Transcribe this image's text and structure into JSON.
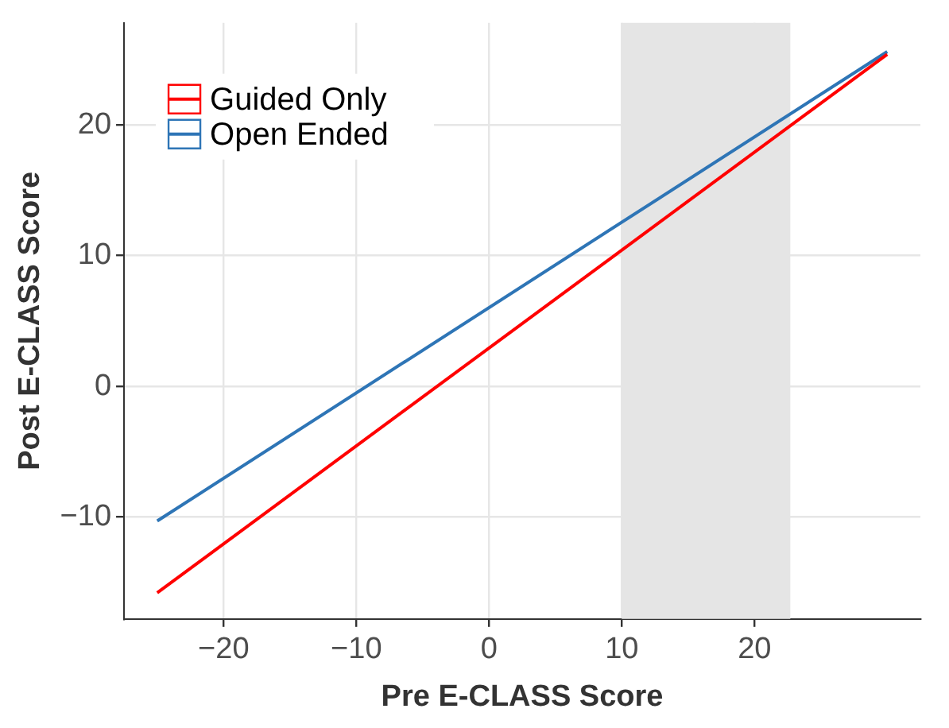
{
  "chart_data": {
    "type": "line",
    "xlabel": "Pre E-CLASS Score",
    "ylabel": "Post E-CLASS Score",
    "x": [
      -25,
      30
    ],
    "series": [
      {
        "name": "Guided Only",
        "color": "#ff0000",
        "values": [
          -15.8,
          25.4
        ]
      },
      {
        "name": "Open Ended",
        "color": "#2e75b6",
        "values": [
          -10.3,
          25.6
        ]
      }
    ],
    "xlim": [
      -27.5,
      32.5
    ],
    "ylim": [
      -17.8,
      27.8
    ],
    "xticks": [
      -20,
      -10,
      0,
      10,
      20
    ],
    "yticks": [
      -10,
      0,
      10,
      20
    ],
    "bands": [
      {
        "axis": "x",
        "from": 10,
        "to": 22.7,
        "color": "#e5e5e5"
      }
    ],
    "grid": true,
    "legend": "top left",
    "marker": "none",
    "line_style": "solid"
  }
}
